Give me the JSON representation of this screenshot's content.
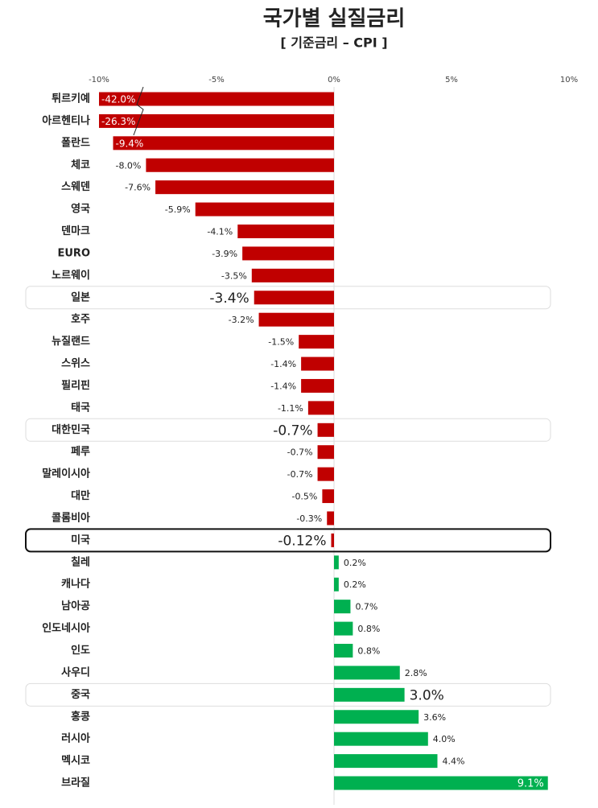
{
  "chart_data": {
    "type": "hbar",
    "title": "국가별 실질금리",
    "subtitle": "[ 기준금리 – CPI ]",
    "categories": [
      "튀르키예",
      "아르헨티나",
      "폴란드",
      "체코",
      "스웨덴",
      "영국",
      "덴마크",
      "EURO",
      "노르웨이",
      "일본",
      "호주",
      "뉴질랜드",
      "스위스",
      "필리핀",
      "태국",
      "대한민국",
      "페루",
      "말레이시아",
      "대만",
      "콜롬비아",
      "미국",
      "칠레",
      "캐나다",
      "남아공",
      "인도네시아",
      "인도",
      "사우디",
      "중국",
      "홍콩",
      "러시아",
      "멕시코",
      "브라질"
    ],
    "values": [
      -42.0,
      -26.3,
      -9.4,
      -8.0,
      -7.6,
      -5.9,
      -4.1,
      -3.9,
      -3.5,
      -3.4,
      -3.2,
      -1.5,
      -1.4,
      -1.4,
      -1.1,
      -0.7,
      -0.7,
      -0.7,
      -0.5,
      -0.3,
      -0.12,
      0.2,
      0.2,
      0.7,
      0.8,
      0.8,
      2.8,
      3.0,
      3.6,
      4.0,
      4.4,
      9.1
    ],
    "value_labels": [
      "-42.0%",
      "-26.3%",
      "-9.4%",
      "-8.0%",
      "-7.6%",
      "-5.9%",
      "-4.1%",
      "-3.9%",
      "-3.5%",
      "-3.4%",
      "-3.2%",
      "-1.5%",
      "-1.4%",
      "-1.4%",
      "-1.1%",
      "-0.7%",
      "-0.7%",
      "-0.7%",
      "-0.5%",
      "-0.3%",
      "-0.12%",
      "0.2%",
      "0.2%",
      "0.7%",
      "0.8%",
      "0.8%",
      "2.8%",
      "3.0%",
      "3.6%",
      "4.0%",
      "4.4%",
      "9.1%"
    ],
    "colors": {
      "negative": "#c00000",
      "positive": "#00b050"
    },
    "xlim": [
      -10,
      10
    ],
    "xticks": [
      {
        "value": -10,
        "label": "-10%"
      },
      {
        "value": -5,
        "label": "-5%"
      },
      {
        "value": 0,
        "label": "0%"
      },
      {
        "value": 5,
        "label": "5%"
      },
      {
        "value": 10,
        "label": "10%"
      }
    ],
    "highlighted": [
      "일본",
      "대한민국",
      "중국"
    ],
    "emphasized": [
      "미국"
    ]
  }
}
